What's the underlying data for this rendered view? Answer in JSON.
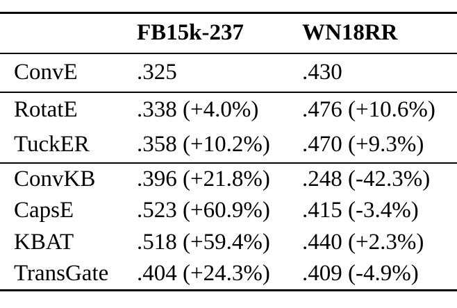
{
  "table": {
    "columns": [
      "",
      "FB15k-237",
      "WN18RR"
    ],
    "groups": [
      {
        "rows": [
          [
            "ConvE",
            ".325",
            ".430"
          ]
        ]
      },
      {
        "rows": [
          [
            "RotatE",
            ".338 (+4.0%)",
            ".476 (+10.6%)"
          ],
          [
            "TuckER",
            ".358 (+10.2%)",
            ".470 (+9.3%)"
          ]
        ]
      },
      {
        "rows": [
          [
            "ConvKB",
            ".396 (+21.8%)",
            ".248 (-42.3%)"
          ],
          [
            "CapsE",
            ".523 (+60.9%)",
            ".415 (-3.4%)"
          ],
          [
            "KBAT",
            ".518 (+59.4%)",
            ".440 (+2.3%)"
          ],
          [
            "TransGate",
            ".404 (+24.3%)",
            ".409 (-4.9%)"
          ]
        ]
      }
    ]
  }
}
